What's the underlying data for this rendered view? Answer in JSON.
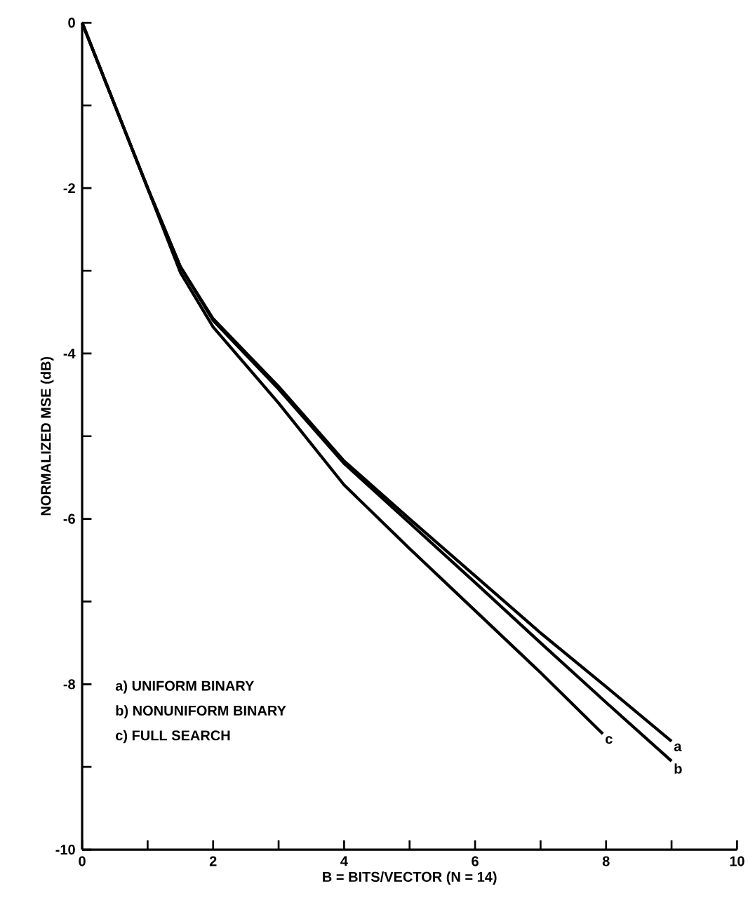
{
  "chart_data": {
    "type": "line",
    "xlabel": "B = BITS/VECTOR (N = 14)",
    "ylabel": "NORMALIZED MSE (dB)",
    "xlim": [
      0,
      10
    ],
    "ylim": [
      -10,
      0
    ],
    "xticks": [
      0,
      {
        "value": 1,
        "label": null
      },
      2,
      {
        "value": 3,
        "label": null
      },
      4,
      {
        "value": 5,
        "label": null
      },
      6,
      {
        "value": 7,
        "label": null
      },
      8,
      {
        "value": 9,
        "label": null
      },
      10
    ],
    "yticks": [
      -10,
      {
        "value": -9,
        "label": null
      },
      -8,
      {
        "value": -7,
        "label": null
      },
      -6,
      {
        "value": -5,
        "label": null
      },
      -4,
      {
        "value": -3,
        "label": null
      },
      -2,
      {
        "value": -1,
        "label": null
      },
      0
    ],
    "grid": false,
    "legend": false,
    "marker": "none",
    "line_style": "solid",
    "series": [
      {
        "name": "a",
        "color": "#000000",
        "x": [
          0,
          0.5,
          1,
          1.5,
          2,
          3,
          4,
          5,
          6,
          7,
          8,
          9
        ],
        "values": [
          0,
          -1.0,
          -2.0,
          -2.95,
          -3.58,
          -4.4,
          -5.3,
          -6.0,
          -6.69,
          -7.38,
          -8.03,
          -8.69
        ]
      },
      {
        "name": "b",
        "color": "#000000",
        "x": [
          0,
          0.5,
          1,
          1.5,
          2,
          3,
          4,
          5,
          6,
          7,
          8,
          9
        ],
        "values": [
          0,
          -1.0,
          -2.0,
          -2.95,
          -3.6,
          -4.43,
          -5.33,
          -6.05,
          -6.77,
          -7.5,
          -8.22,
          -8.93
        ]
      },
      {
        "name": "c",
        "color": "#000000",
        "x": [
          0,
          0.5,
          1,
          1.5,
          2,
          3,
          4,
          5,
          6,
          7,
          7.95
        ],
        "values": [
          0,
          -1.0,
          -2.0,
          -3.02,
          -3.68,
          -4.6,
          -5.59,
          -6.36,
          -7.11,
          -7.86,
          -8.6
        ]
      }
    ],
    "annotations": [
      "a) UNIFORM BINARY",
      "b) NONUNIFORM BINARY",
      "c) FULL SEARCH"
    ]
  }
}
